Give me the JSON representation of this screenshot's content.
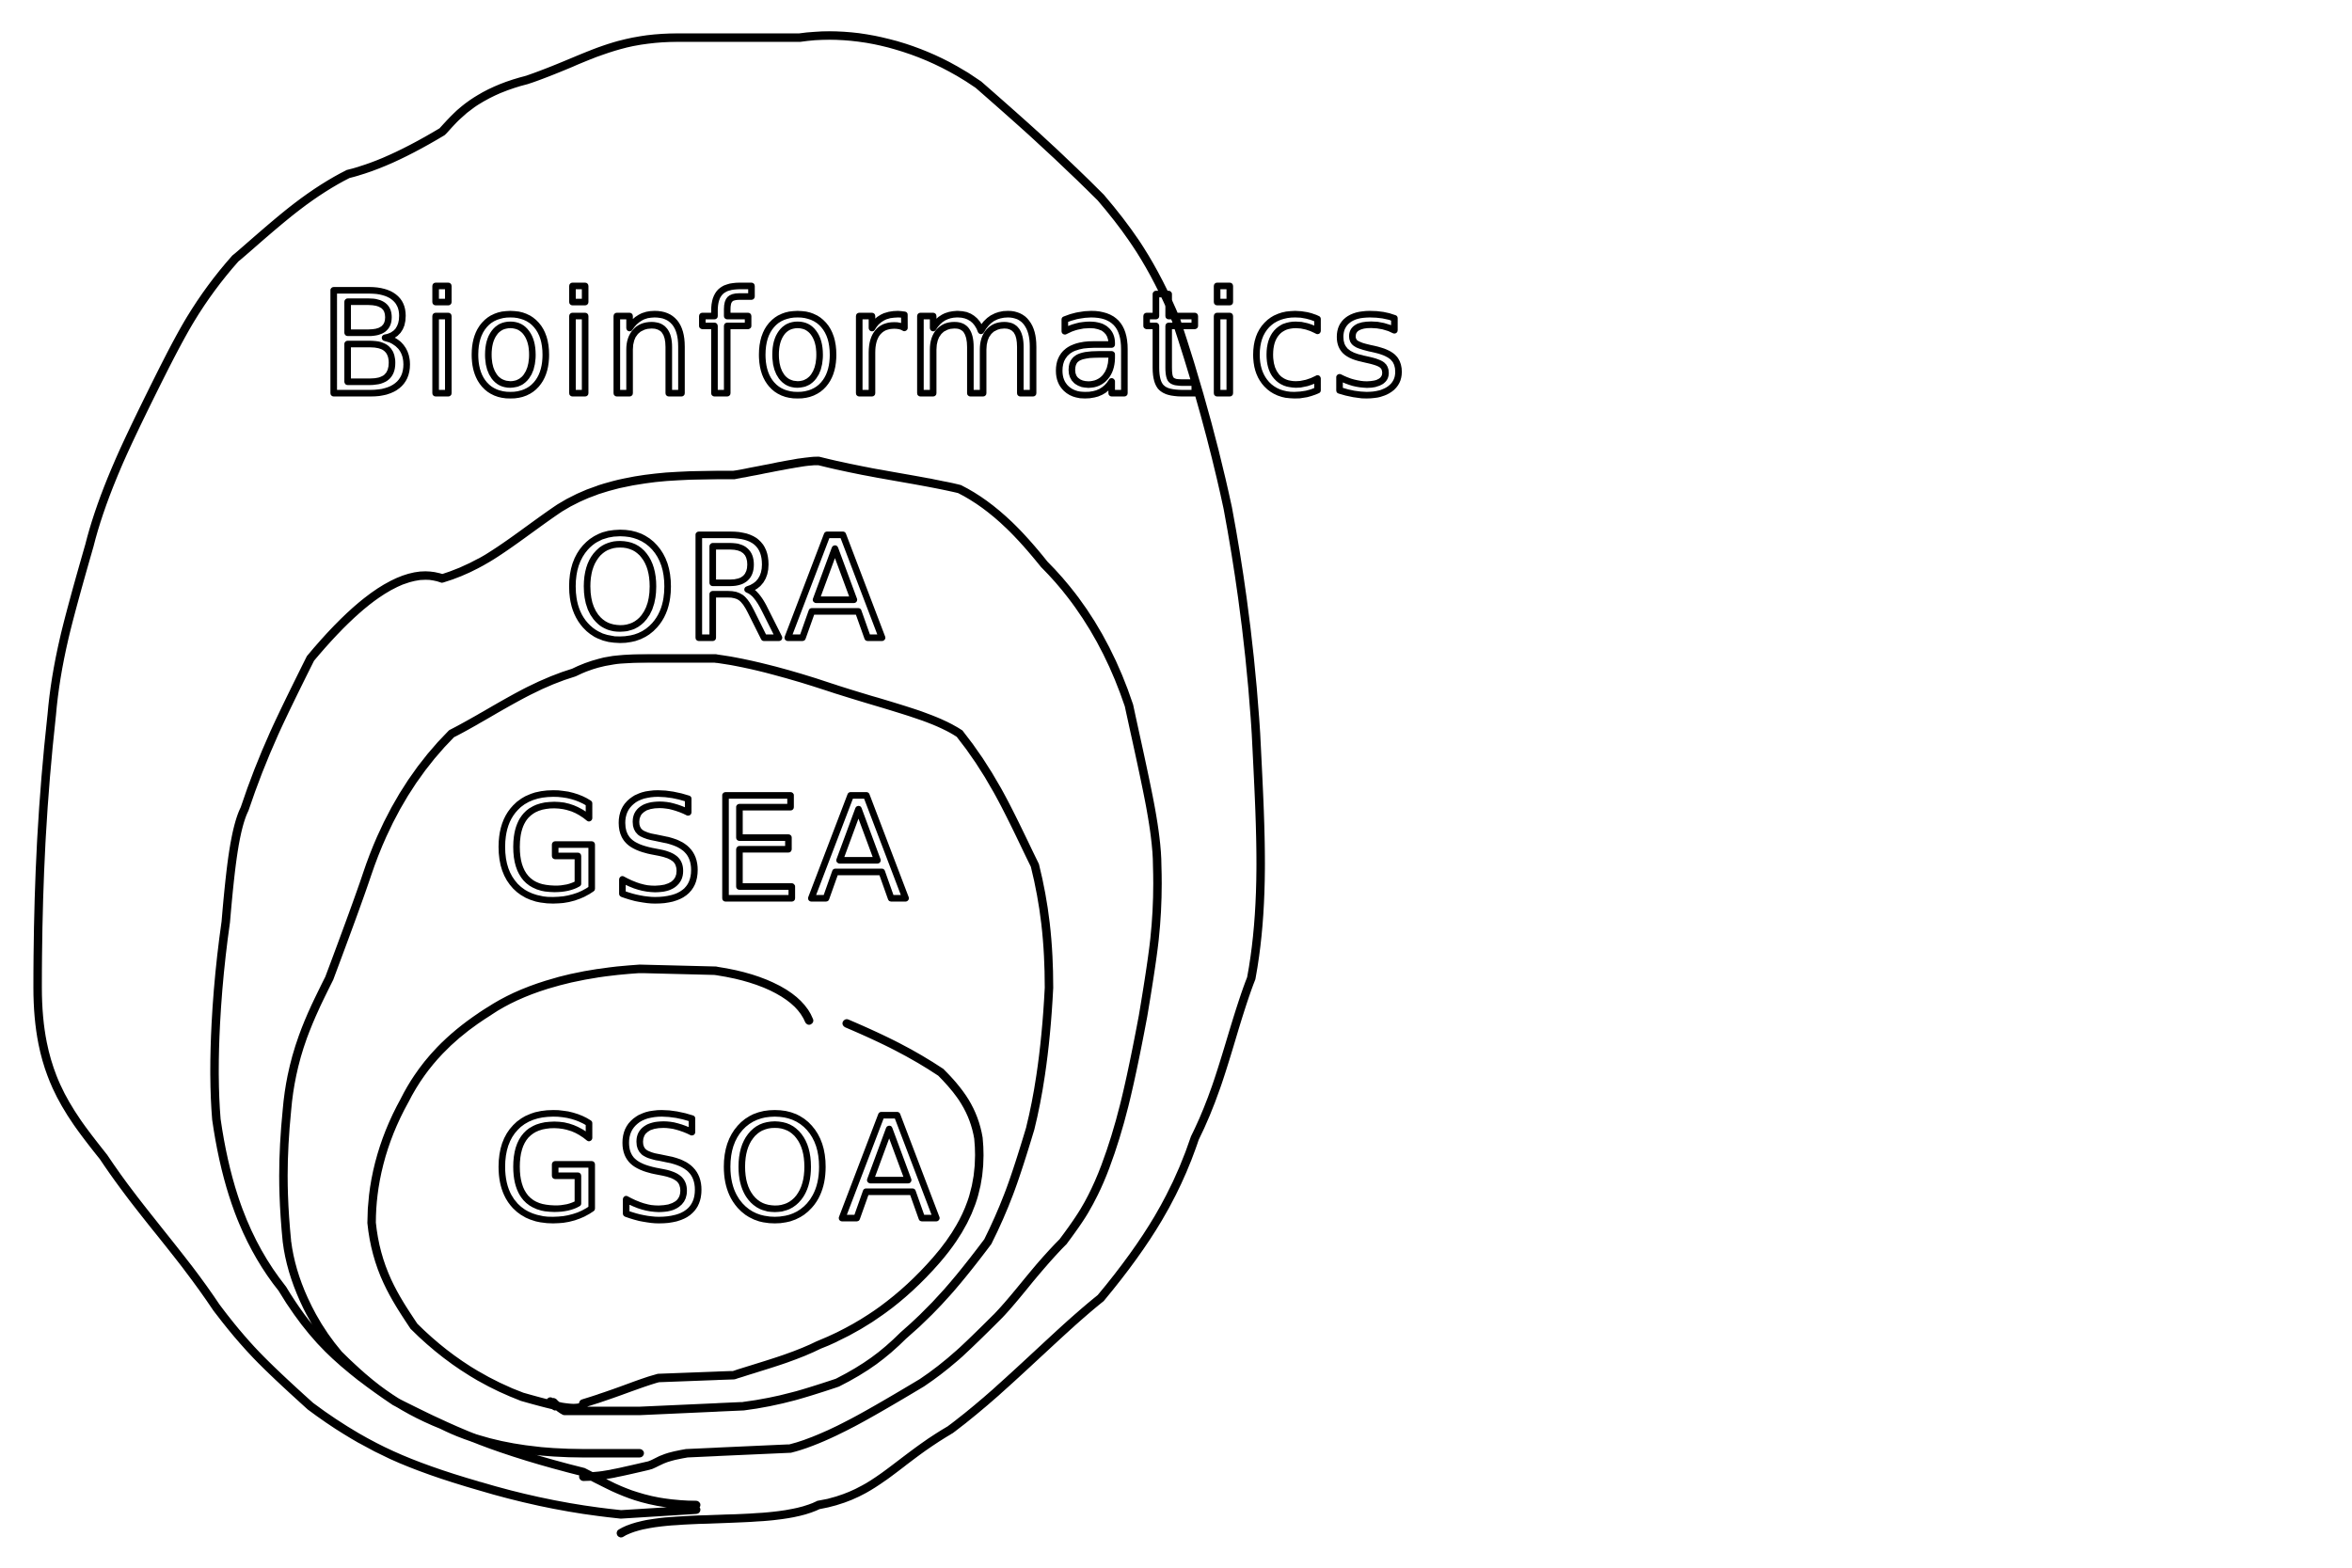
{
  "stroke_color": "#000000",
  "background_color": "#ffffff",
  "labels": {
    "outer": "Bioinformatics",
    "ring2": "ORA",
    "ring3": "GSEA",
    "inner": "GSOA"
  }
}
